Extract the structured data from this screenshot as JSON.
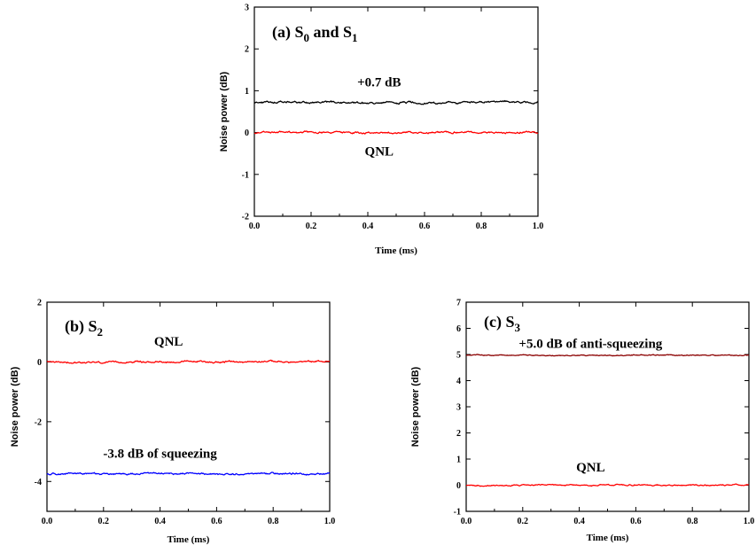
{
  "chart_data": [
    {
      "type": "line",
      "panel_label": {
        "main": "(a) S",
        "sub1": "0",
        "mid": " and S",
        "sub2": "1"
      },
      "xlabel": "Time (ms)",
      "ylabel": "Noise power (dB)",
      "xlim": [
        0.0,
        1.0
      ],
      "ylim": [
        -2,
        3
      ],
      "xticks": [
        "0.0",
        "0.2",
        "0.4",
        "0.6",
        "0.8",
        "1.0"
      ],
      "yticks": [
        "-2",
        "-1",
        "0",
        "1",
        "2",
        "3"
      ],
      "grid": false,
      "series": [
        {
          "level": 0.72,
          "noise": 0.035,
          "color": "#000000"
        },
        {
          "level": 0.0,
          "noise": 0.03,
          "color": "#ff0000"
        }
      ],
      "annotations": [
        {
          "text": "+0.7 dB",
          "x": 0.44,
          "y": 1.1
        },
        {
          "text": "QNL",
          "x": 0.44,
          "y": -0.55
        }
      ]
    },
    {
      "type": "line",
      "panel_label": {
        "main": "(b) S",
        "sub1": "2"
      },
      "xlabel": "Time (ms)",
      "ylabel": "Noise power (dB)",
      "xlim": [
        0.0,
        1.0
      ],
      "ylim": [
        -5,
        2
      ],
      "xticks": [
        "0.0",
        "0.2",
        "0.4",
        "0.6",
        "0.8",
        "1.0"
      ],
      "yticks": [
        "-4",
        "-2",
        "0",
        "2"
      ],
      "grid": false,
      "series": [
        {
          "level": 0.0,
          "noise": 0.04,
          "color": "#ff0000"
        },
        {
          "level": -3.75,
          "noise": 0.04,
          "color": "#0000ff"
        }
      ],
      "annotations": [
        {
          "text": "QNL",
          "x": 0.43,
          "y": 0.55
        },
        {
          "text": "-3.8 dB of squeezing",
          "x": 0.4,
          "y": -3.2
        }
      ]
    },
    {
      "type": "line",
      "panel_label": {
        "main": "(c) S",
        "sub1": "3"
      },
      "xlabel": "Time (ms)",
      "ylabel": "Noise power (dB)",
      "xlim": [
        0.0,
        1.0
      ],
      "ylim": [
        -1,
        7
      ],
      "xticks": [
        "0.0",
        "0.2",
        "0.4",
        "0.6",
        "0.8",
        "1.0"
      ],
      "yticks": [
        "-1",
        "0",
        "1",
        "2",
        "3",
        "4",
        "5",
        "6",
        "7"
      ],
      "grid": false,
      "series": [
        {
          "level": 4.97,
          "noise": 0.025,
          "color": "#8b0000"
        },
        {
          "level": 0.0,
          "noise": 0.035,
          "color": "#ff0000"
        }
      ],
      "annotations": [
        {
          "text": "+5.0 dB of anti-squeezing",
          "x": 0.44,
          "y": 5.25
        },
        {
          "text": "QNL",
          "x": 0.44,
          "y": 0.52
        }
      ]
    }
  ]
}
